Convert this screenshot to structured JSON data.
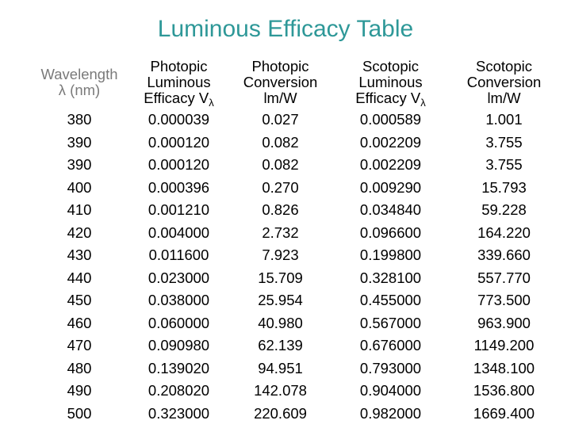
{
  "title": "Luminous Efficacy Table",
  "colors": {
    "title": "#2E9898",
    "wavelength_header": "#7A7A7A",
    "text": "#000000",
    "background": "#FFFFFF"
  },
  "table": {
    "headers": [
      {
        "line1": "Wavelength",
        "line2": "λ (nm)",
        "line3": "",
        "sub": ""
      },
      {
        "line1": "Photopic",
        "line2": "Luminous",
        "line3": "Efficacy V",
        "sub": "λ"
      },
      {
        "line1": "Photopic",
        "line2": "Conversion",
        "line3": "lm/W",
        "sub": ""
      },
      {
        "line1": "Scotopic",
        "line2": "Luminous",
        "line3": "Efficacy V",
        "sub": "λ"
      },
      {
        "line1": "Scotopic",
        "line2": "Conversion",
        "line3": "lm/W",
        "sub": ""
      }
    ],
    "rows": [
      [
        "380",
        "0.000039",
        "0.027",
        "0.000589",
        "1.001"
      ],
      [
        "390",
        "0.000120",
        "0.082",
        "0.002209",
        "3.755"
      ],
      [
        "390",
        "0.000120",
        "0.082",
        "0.002209",
        "3.755"
      ],
      [
        "400",
        "0.000396",
        "0.270",
        "0.009290",
        "15.793"
      ],
      [
        "410",
        "0.001210",
        "0.826",
        "0.034840",
        "59.228"
      ],
      [
        "420",
        "0.004000",
        "2.732",
        "0.096600",
        "164.220"
      ],
      [
        "430",
        "0.011600",
        "7.923",
        "0.199800",
        "339.660"
      ],
      [
        "440",
        "0.023000",
        "15.709",
        "0.328100",
        "557.770"
      ],
      [
        "450",
        "0.038000",
        "25.954",
        "0.455000",
        "773.500"
      ],
      [
        "460",
        "0.060000",
        "40.980",
        "0.567000",
        "963.900"
      ],
      [
        "470",
        "0.090980",
        "62.139",
        "0.676000",
        "1149.200"
      ],
      [
        "480",
        "0.139020",
        "94.951",
        "0.793000",
        "1348.100"
      ],
      [
        "490",
        "0.208020",
        "142.078",
        "0.904000",
        "1536.800"
      ],
      [
        "500",
        "0.323000",
        "220.609",
        "0.982000",
        "1669.400"
      ]
    ]
  },
  "chart_data": {
    "type": "table",
    "title": "Luminous Efficacy Table",
    "columns": [
      "Wavelength λ (nm)",
      "Photopic Luminous Efficacy Vλ",
      "Photopic Conversion lm/W",
      "Scotopic Luminous Efficacy Vλ",
      "Scotopic Conversion lm/W"
    ],
    "rows": [
      [
        380,
        3.9e-05,
        0.027,
        0.000589,
        1.001
      ],
      [
        390,
        0.00012,
        0.082,
        0.002209,
        3.755
      ],
      [
        390,
        0.00012,
        0.082,
        0.002209,
        3.755
      ],
      [
        400,
        0.000396,
        0.27,
        0.00929,
        15.793
      ],
      [
        410,
        0.00121,
        0.826,
        0.03484,
        59.228
      ],
      [
        420,
        0.004,
        2.732,
        0.0966,
        164.22
      ],
      [
        430,
        0.0116,
        7.923,
        0.1998,
        339.66
      ],
      [
        440,
        0.023,
        15.709,
        0.3281,
        557.77
      ],
      [
        450,
        0.038,
        25.954,
        0.455,
        773.5
      ],
      [
        460,
        0.06,
        40.98,
        0.567,
        963.9
      ],
      [
        470,
        0.09098,
        62.139,
        0.676,
        1149.2
      ],
      [
        480,
        0.13902,
        94.951,
        0.793,
        1348.1
      ],
      [
        490,
        0.20802,
        142.078,
        0.904,
        1536.8
      ],
      [
        500,
        0.323,
        220.609,
        0.982,
        1669.4
      ]
    ]
  }
}
